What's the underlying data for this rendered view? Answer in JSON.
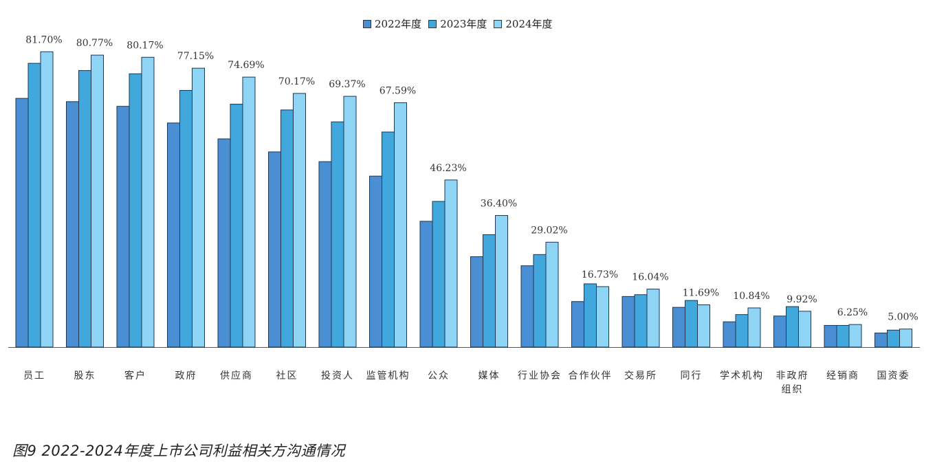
{
  "caption": "图9 2022-2024年度上市公司利益相关方沟通情况",
  "colors": {
    "y2022": "#4a8fd4",
    "y2023": "#40a8dc",
    "y2024": "#8ed5f5"
  },
  "chart_data": {
    "type": "bar",
    "title": "",
    "xlabel": "",
    "ylabel": "",
    "ylim": [
      0,
      100
    ],
    "grid": false,
    "legend_position": "top-center",
    "categories": [
      "员工",
      "股东",
      "客户",
      "政府",
      "供应商",
      "社区",
      "投资人",
      "监管机构",
      "公众",
      "媒体",
      "行业协会",
      "合作伙伴",
      "交易所",
      "同行",
      "学术机构",
      "非政府\n组织",
      "经销商",
      "国资委"
    ],
    "series": [
      {
        "name": "2022年度",
        "values": [
          68.8,
          67.9,
          66.6,
          62.0,
          57.6,
          54.0,
          51.3,
          47.3,
          34.8,
          25.0,
          22.5,
          12.6,
          14.0,
          11.0,
          7.0,
          8.6,
          6.0,
          3.9
        ]
      },
      {
        "name": "2023年度",
        "values": [
          78.5,
          76.5,
          75.6,
          71.0,
          67.2,
          65.6,
          62.3,
          59.5,
          40.3,
          31.1,
          25.6,
          17.5,
          14.5,
          12.9,
          9.0,
          11.2,
          6.0,
          4.7
        ]
      },
      {
        "name": "2024年度",
        "values": [
          81.7,
          80.77,
          80.17,
          77.15,
          74.69,
          70.17,
          69.37,
          67.59,
          46.23,
          36.4,
          29.02,
          16.73,
          16.04,
          11.69,
          10.84,
          9.92,
          6.25,
          5.0
        ]
      }
    ],
    "data_labels": [
      "81.70%",
      "80.77%",
      "80.17%",
      "77.15%",
      "74.69%",
      "70.17%",
      "69.37%",
      "67.59%",
      "46.23%",
      "36.40%",
      "29.02%",
      "16.73%",
      "16.04%",
      "11.69%",
      "10.84%",
      "9.92%",
      "6.25%",
      "5.00%"
    ]
  }
}
